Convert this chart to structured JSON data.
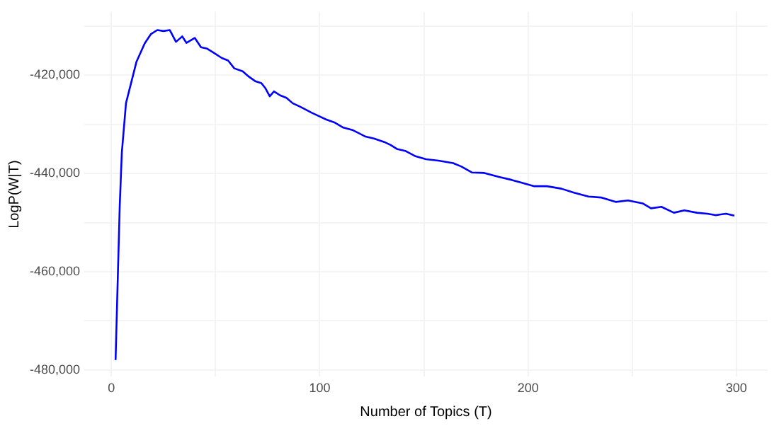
{
  "chart_data": {
    "type": "line",
    "xlabel": "Number of Topics (T)",
    "ylabel": "LogP(W|T)",
    "xlim": [
      -13,
      315
    ],
    "ylim": [
      -481400,
      -407100
    ],
    "xticks": [
      0,
      {
        "value": 50,
        "label": null
      },
      100,
      {
        "value": 150,
        "label": null
      },
      200,
      {
        "value": 250,
        "label": null
      },
      300
    ],
    "yticks": [
      {
        "value": -480000,
        "label": "-480,000"
      },
      {
        "value": -470000,
        "label": null
      },
      {
        "value": -460000,
        "label": "-460,000"
      },
      {
        "value": -450000,
        "label": null
      },
      {
        "value": -440000,
        "label": "-440,000"
      },
      {
        "value": -430000,
        "label": null
      },
      {
        "value": -420000,
        "label": "-420,000"
      },
      {
        "value": -410000,
        "label": null
      }
    ],
    "grid": true,
    "marker": "none",
    "line_style": "solid",
    "series": [
      {
        "color": "#0000ff",
        "x": [
          2,
          4,
          5,
          7,
          12,
          16,
          19,
          22,
          25,
          28,
          31,
          34,
          36,
          38,
          40,
          43,
          46,
          49,
          53,
          56,
          59,
          63,
          66,
          69,
          72,
          74,
          76,
          78,
          81,
          84,
          87,
          91,
          96,
          100,
          103,
          107,
          111,
          116,
          122,
          126,
          131,
          134,
          137,
          141,
          146,
          151,
          157,
          164,
          168,
          173,
          179,
          186,
          192,
          197,
          203,
          209,
          216,
          222,
          229,
          235,
          242,
          248,
          255,
          259,
          264,
          270,
          275,
          281,
          286,
          290,
          295,
          299
        ],
        "values": [
          -478000,
          -446600,
          -435800,
          -425700,
          -417300,
          -413500,
          -411600,
          -410800,
          -411000,
          -410800,
          -413200,
          -412100,
          -413400,
          -412900,
          -412400,
          -414300,
          -414600,
          -415400,
          -416500,
          -417000,
          -418600,
          -419200,
          -420300,
          -421200,
          -421600,
          -422700,
          -424300,
          -423300,
          -424100,
          -424600,
          -425700,
          -426500,
          -427600,
          -428400,
          -429000,
          -429600,
          -430600,
          -431200,
          -432500,
          -432900,
          -433600,
          -434200,
          -435000,
          -435400,
          -436500,
          -437100,
          -437400,
          -437900,
          -438600,
          -439800,
          -439900,
          -440700,
          -441300,
          -441900,
          -442600,
          -442600,
          -443100,
          -443900,
          -444700,
          -444900,
          -445800,
          -445500,
          -446100,
          -447100,
          -446800,
          -448000,
          -447500,
          -448000,
          -448200,
          -448500,
          -448200,
          -448600
        ]
      }
    ]
  }
}
